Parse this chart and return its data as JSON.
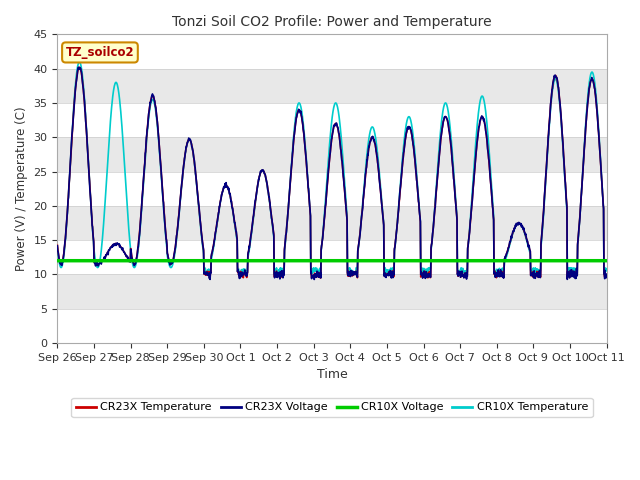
{
  "title": "Tonzi Soil CO2 Profile: Power and Temperature",
  "xlabel": "Time",
  "ylabel": "Power (V) / Temperature (C)",
  "ylim": [
    0,
    45
  ],
  "yticks": [
    0,
    5,
    10,
    15,
    20,
    25,
    30,
    35,
    40,
    45
  ],
  "x_tick_labels": [
    "Sep 26",
    "Sep 27",
    "Sep 28",
    "Sep 29",
    "Sep 30",
    "Oct 1",
    "Oct 2",
    "Oct 3",
    "Oct 4",
    "Oct 5",
    "Oct 6",
    "Oct 7",
    "Oct 8",
    "Oct 9",
    "Oct 10",
    "Oct 11"
  ],
  "annotation_text": "TZ_soilco2",
  "annotation_bg": "#FFFFCC",
  "annotation_border": "#CC8800",
  "plot_bg_light": "#FFFFFF",
  "plot_bg_dark": "#E8E8E8",
  "cr23x_temp_color": "#CC0000",
  "cr23x_volt_color": "#000080",
  "cr10x_volt_color": "#00CC00",
  "cr10x_temp_color": "#00CCCC",
  "cr10x_volt_value": 12.0,
  "legend_labels": [
    "CR23X Temperature",
    "CR23X Voltage",
    "CR10X Voltage",
    "CR10X Temperature"
  ],
  "fig_bg": "#FFFFFF",
  "cr23x_peaks": [
    40.2,
    14.5,
    36.0,
    29.7,
    23.0,
    25.2,
    34.0,
    32.0,
    30.0,
    31.5,
    33.0,
    33.0,
    17.5,
    39.0,
    38.5
  ],
  "cr10x_peaks": [
    41.0,
    38.0,
    35.5,
    29.7,
    23.0,
    25.2,
    35.0,
    35.0,
    31.5,
    33.0,
    35.0,
    36.0,
    17.5,
    38.5,
    39.5
  ],
  "cr23x_trough": 11.5,
  "cr10x_trough": 11.0,
  "cr23x_night_min": 9.5,
  "cr10x_night_min": 10.0
}
